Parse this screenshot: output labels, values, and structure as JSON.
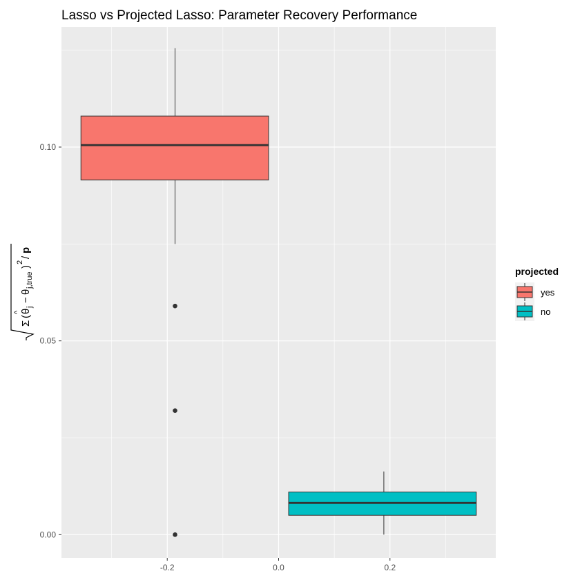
{
  "chart_data": {
    "type": "box",
    "title": "Lasso vs Projected Lasso: Parameter Recovery Performance",
    "xlabel": "",
    "ylabel": "sqrt( Σ (θ̂_j − θ_j,true)^2 / p )",
    "xlim": [
      -0.39,
      0.39
    ],
    "ylim": [
      -0.006,
      0.131
    ],
    "x_ticks": [
      -0.2,
      0.0,
      0.2
    ],
    "x_tick_labels": [
      "-0.2",
      "0.0",
      "0.2"
    ],
    "y_ticks": [
      0.0,
      0.05,
      0.1
    ],
    "y_tick_labels": [
      "0.00",
      "0.05",
      "0.10"
    ],
    "grid": true,
    "legend_title": "projected",
    "legend_position": "right",
    "series": [
      {
        "name": "yes",
        "color": "#F8766D",
        "x_range": [
          -0.355,
          -0.018
        ],
        "whisker_x": -0.186,
        "min": 0.075,
        "q1": 0.0915,
        "median": 0.1005,
        "q3": 0.108,
        "max": 0.1255,
        "outliers": [
          0.059,
          0.032,
          0.0
        ]
      },
      {
        "name": "no",
        "color": "#00BFC4",
        "x_range": [
          0.018,
          0.355
        ],
        "whisker_x": 0.189,
        "min": 0.0,
        "q1": 0.005,
        "median": 0.0082,
        "q3": 0.011,
        "max": 0.0163,
        "outliers": []
      }
    ]
  },
  "colors": {
    "panel_background": "#EBEBEB",
    "grid_major": "#FFFFFF",
    "box_outline": "#333333",
    "text": "#000000"
  }
}
